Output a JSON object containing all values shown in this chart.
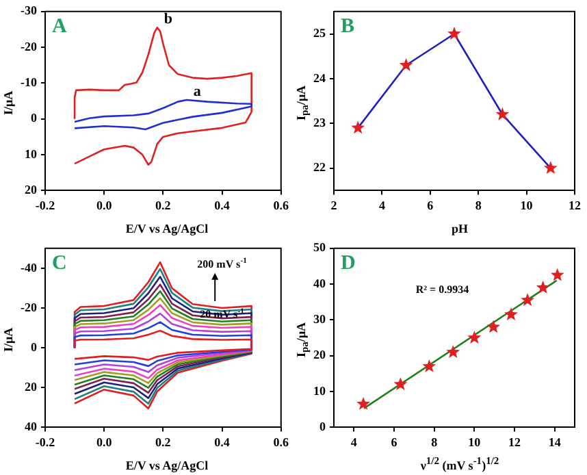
{
  "chart_data": [
    {
      "type": "line",
      "title": "A",
      "xlabel": "E/V vs Ag/AgCl",
      "ylabel": "I/μA",
      "xlim": [
        -0.2,
        0.6
      ],
      "xticks": [
        -0.2,
        {
          "value": 0,
          "label": "0.0"
        },
        0.2,
        0.4,
        0.6
      ],
      "ylim": [
        20,
        -30
      ],
      "yticks": [
        20,
        10,
        0,
        -10,
        -20,
        -30
      ],
      "series": [
        {
          "name": "a",
          "color": "#2030d0",
          "x": [
            -0.1,
            -0.05,
            0,
            0.1,
            0.15,
            0.2,
            0.25,
            0.28,
            0.35,
            0.45,
            0.5,
            0.5,
            0.4,
            0.3,
            0.2,
            0.14,
            0.1,
            0,
            -0.1
          ],
          "values": [
            0.8,
            -0.2,
            -0.7,
            -1,
            -1.5,
            -3,
            -4.8,
            -5.3,
            -4.8,
            -4.3,
            -4.2,
            -3.5,
            -1.7,
            -0.6,
            1.1,
            2.9,
            2.4,
            2,
            2.6
          ]
        },
        {
          "name": "b",
          "color": "#e02020",
          "x": [
            -0.1,
            -0.1,
            -0.095,
            -0.05,
            0,
            0.05,
            0.07,
            0.09,
            0.11,
            0.13,
            0.15,
            0.17,
            0.18,
            0.19,
            0.2,
            0.22,
            0.25,
            0.3,
            0.35,
            0.4,
            0.45,
            0.5,
            0.5,
            0.48,
            0.4,
            0.3,
            0.25,
            0.2,
            0.18,
            0.16,
            0.15,
            0.13,
            0.1,
            0.07,
            0,
            -0.05,
            -0.1
          ],
          "values": [
            0,
            -6,
            -8,
            -8.2,
            -8,
            -8,
            -9.5,
            -9.8,
            -10.2,
            -13,
            -18,
            -24,
            -25.5,
            -24.5,
            -21,
            -15,
            -12.5,
            -11.5,
            -11.2,
            -11.5,
            -12,
            -12.8,
            -2,
            1,
            2.5,
            3.5,
            4,
            5,
            7,
            12,
            12.8,
            10,
            8,
            7.5,
            8.5,
            10.5,
            12.5
          ]
        }
      ]
    },
    {
      "type": "line",
      "title": "B",
      "xlabel": "pH",
      "ylabel": "I$_{pa}$/μA",
      "xlim": [
        2,
        12
      ],
      "xticks": [
        2,
        4,
        6,
        8,
        10,
        12
      ],
      "ylim": [
        21.5,
        25.5
      ],
      "yticks": [
        22,
        23,
        24,
        25
      ],
      "marker": "star",
      "x": [
        3,
        5,
        7,
        9,
        11
      ],
      "series": [
        {
          "color": "#2020c0",
          "colors": [
            "#e02020",
            "#e02020",
            "#e02020",
            "#e02020",
            "#e02020"
          ],
          "values": [
            22.9,
            24.3,
            25,
            23.2,
            22.0
          ]
        }
      ]
    },
    {
      "type": "line",
      "title": "C",
      "xlabel": "E/V vs Ag/AgCl",
      "ylabel": "I/μA",
      "xlim": [
        -0.2,
        0.6
      ],
      "xticks": [
        -0.2,
        {
          "value": 0,
          "label": "0.0"
        },
        0.2,
        0.4,
        0.6
      ],
      "ylim": [
        40,
        -50
      ],
      "yticks": [
        40,
        20,
        0,
        -20,
        -40
      ],
      "annotations": [
        "200 mV s$^{-1}$",
        "20 mV s$^{-1}$"
      ],
      "x": [
        -0.1,
        -0.1,
        -0.08,
        0,
        0.1,
        0.15,
        0.19,
        0.23,
        0.3,
        0.4,
        0.5,
        0.5,
        0.4,
        0.25,
        0.18,
        0.15,
        0.1,
        0,
        -0.1
      ],
      "series": [
        {
          "color": "#e02020",
          "values": [
            0,
            -3.6,
            -4.1,
            -4.2,
            -4.8,
            -6.6,
            -8.6,
            -6,
            -4.4,
            -4,
            -4.2,
            0.6,
            1.3,
            2.5,
            4.4,
            6.1,
            4.8,
            4.2,
            5.6
          ]
        },
        {
          "color": "#2040e0",
          "values": [
            0,
            -5.4,
            -6.2,
            -6.3,
            -7.2,
            -9.9,
            -12.9,
            -9,
            -6.6,
            -6,
            -6.3,
            0.9,
            2,
            3.8,
            6.6,
            9.2,
            7.2,
            6.3,
            8.4
          ]
        },
        {
          "color": "#b040e0",
          "values": [
            0,
            -7.2,
            -8.2,
            -8.4,
            -9.6,
            -13.2,
            -17.2,
            -12,
            -8.8,
            -8,
            -8.4,
            1.2,
            2.6,
            5,
            8.8,
            12.2,
            9.6,
            8.4,
            11.2
          ]
        },
        {
          "color": "#f040c0",
          "values": [
            0,
            -9,
            -10.3,
            -10.5,
            -12,
            -16.5,
            -21.5,
            -15,
            -11,
            -10,
            -10.5,
            1.5,
            3.3,
            6.3,
            11,
            15.3,
            12,
            10.5,
            14
          ]
        },
        {
          "color": "#a0a020",
          "values": [
            0,
            -10.4,
            -11.9,
            -12.2,
            -13.9,
            -19.1,
            -24.9,
            -17.4,
            -12.8,
            -11.6,
            -12.2,
            1.7,
            3.8,
            7.3,
            12.8,
            17.7,
            13.9,
            12.2,
            16.2
          ]
        },
        {
          "color": "#208020",
          "values": [
            0,
            -11.9,
            -13.5,
            -13.9,
            -15.8,
            -21.8,
            -28.4,
            -19.8,
            -14.5,
            -13.2,
            -13.9,
            2,
            4.3,
            8.3,
            14.5,
            20.1,
            15.8,
            13.9,
            18.5
          ]
        },
        {
          "color": "#802050",
          "values": [
            0,
            -13.3,
            -15.2,
            -15.5,
            -17.8,
            -24.4,
            -31.8,
            -22.2,
            -16.3,
            -14.8,
            -15.5,
            2.2,
            4.8,
            9.3,
            16.3,
            22.6,
            17.8,
            15.5,
            20.7
          ]
        },
        {
          "color": "#202080",
          "values": [
            0,
            -14.9,
            -17,
            -17.4,
            -19.9,
            -27.4,
            -35.7,
            -24.9,
            -18.3,
            -16.6,
            -17.4,
            2.5,
            5.4,
            10.4,
            18.3,
            25.3,
            19.9,
            17.4,
            23.2
          ]
        },
        {
          "color": "#208080",
          "values": [
            0,
            -16.6,
            -18.9,
            -19.3,
            -22.1,
            -30.4,
            -39.6,
            -27.6,
            -20.2,
            -18.4,
            -19.3,
            2.8,
            6,
            11.5,
            20.2,
            28.1,
            22.1,
            19.3,
            25.8
          ]
        },
        {
          "color": "#e02020",
          "values": [
            0,
            -18,
            -20.5,
            -21,
            -24,
            -33,
            -43,
            -30,
            -22,
            -20,
            -21,
            3,
            6.5,
            12.5,
            22,
            30.5,
            24,
            21,
            28
          ]
        }
      ]
    },
    {
      "type": "scatter",
      "title": "D",
      "xlabel": "ν$^{1/2}$ (mV s$^{-1}$)$^{1/2}$",
      "ylabel": "I$_{pa}$/μA",
      "xlim": [
        3,
        15
      ],
      "xticks": [
        4,
        6,
        8,
        10,
        12,
        14
      ],
      "ylim": [
        0,
        50
      ],
      "yticks": [
        0,
        10,
        20,
        30,
        40,
        50
      ],
      "marker": "star",
      "annotations": [
        "R² = 0.9934"
      ],
      "x": [
        4.47,
        6.32,
        7.75,
        8.94,
        10,
        10.95,
        11.83,
        12.65,
        13.42,
        14.14
      ],
      "series": [
        {
          "color": "#e02020",
          "values": [
            6.5,
            12,
            17,
            21,
            25,
            28,
            31.5,
            35.5,
            39,
            42.5
          ]
        },
        {
          "type": "line",
          "marker": "none",
          "color": "#208020",
          "x": [
            4.5,
            14.1
          ],
          "values": [
            5.3,
            41
          ]
        }
      ]
    }
  ]
}
